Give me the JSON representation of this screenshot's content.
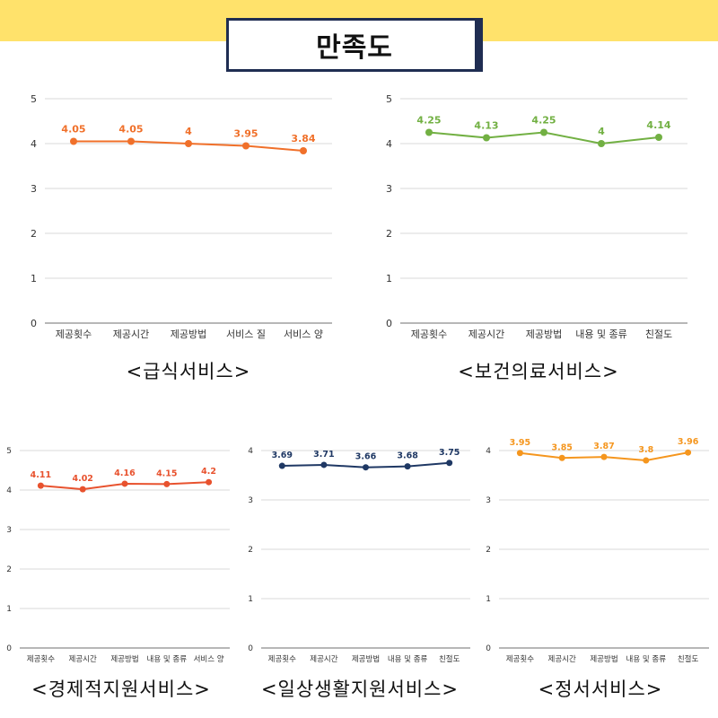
{
  "header": {
    "title": "만족도"
  },
  "chart_data": [
    {
      "type": "line",
      "caption": "<급식서비스>",
      "categories": [
        "제공횟수",
        "제공시간",
        "제공방법",
        "서비스 질",
        "서비스 양"
      ],
      "values": [
        4.05,
        4.05,
        4,
        3.95,
        3.84
      ],
      "value_labels": [
        "4.05",
        "4.05",
        "4",
        "3.95",
        "3.84"
      ],
      "ylim": [
        0,
        5
      ],
      "yticks": [
        "0",
        "1",
        "2",
        "3",
        "4",
        "5"
      ],
      "color": "#f0702a",
      "grid": true
    },
    {
      "type": "line",
      "caption": "<보건의료서비스>",
      "categories": [
        "제공횟수",
        "제공시간",
        "제공방법",
        "내용 및 종류",
        "친절도"
      ],
      "values": [
        4.25,
        4.13,
        4.25,
        4,
        4.14
      ],
      "value_labels": [
        "4.25",
        "4.13",
        "4.25",
        "4",
        "4.14"
      ],
      "ylim": [
        0,
        5
      ],
      "yticks": [
        "0",
        "1",
        "2",
        "3",
        "4",
        "5"
      ],
      "color": "#72b043",
      "grid": true
    },
    {
      "type": "line",
      "caption": "<경제적지원서비스>",
      "categories": [
        "제공횟수",
        "제공시간",
        "제공방법",
        "내용 및 종류",
        "서비스 양"
      ],
      "values": [
        4.11,
        4.02,
        4.16,
        4.15,
        4.2
      ],
      "value_labels": [
        "4.11",
        "4.02",
        "4.16",
        "4.15",
        "4.2"
      ],
      "ylim": [
        0,
        5
      ],
      "yticks": [
        "0",
        "1",
        "2",
        "3",
        "4",
        "5"
      ],
      "color": "#e8522e",
      "grid": true
    },
    {
      "type": "line",
      "caption": "<일상생활지원서비스>",
      "categories": [
        "제공횟수",
        "제공시간",
        "제공방법",
        "내용 및 종류",
        "친절도"
      ],
      "values": [
        3.69,
        3.71,
        3.66,
        3.68,
        3.75
      ],
      "value_labels": [
        "3.69",
        "3.71",
        "3.66",
        "3.68",
        "3.75"
      ],
      "ylim": [
        0,
        4
      ],
      "yticks": [
        "0",
        "1",
        "2",
        "3",
        "4"
      ],
      "color": "#1f3864",
      "grid": true
    },
    {
      "type": "line",
      "caption": "<정서서비스>",
      "categories": [
        "제공횟수",
        "제공시간",
        "제공방법",
        "내용 및 종류",
        "친절도"
      ],
      "values": [
        3.95,
        3.85,
        3.87,
        3.8,
        3.96
      ],
      "value_labels": [
        "3.95",
        "3.85",
        "3.87",
        "3.8",
        "3.96"
      ],
      "ylim": [
        0,
        4
      ],
      "yticks": [
        "0",
        "1",
        "2",
        "3",
        "4"
      ],
      "color": "#f5961e",
      "grid": true
    }
  ]
}
